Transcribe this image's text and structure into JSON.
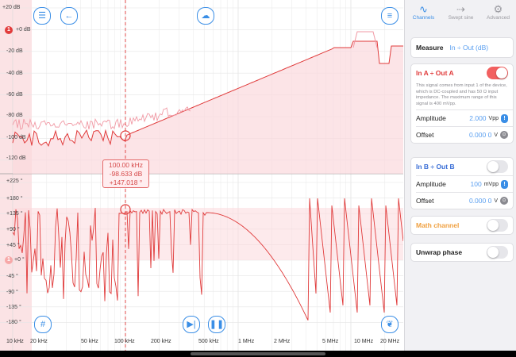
{
  "tabs": [
    {
      "label": "Channels",
      "icon": "channels-icon",
      "active": true
    },
    {
      "label": "Swept sine",
      "icon": "swept-sine-icon",
      "active": false
    },
    {
      "label": "Advanced",
      "icon": "gear-icon",
      "active": false
    }
  ],
  "measure": {
    "label": "Measure",
    "value": "In ÷ Out (dB)"
  },
  "channel_a": {
    "title": "In A ÷ Out A",
    "enabled": true,
    "description": "This signal comes from input 1 of the device, which is DC-coupled and has 50 Ω input impedance. The maximum range of this signal is 400 mVpp.",
    "amplitude_label": "Amplitude",
    "amplitude_value": "2.000",
    "amplitude_unit": "Vpp",
    "offset_label": "Offset",
    "offset_value": "0.000 0",
    "offset_unit": "V"
  },
  "channel_b": {
    "title": "In B ÷ Out B",
    "enabled": false,
    "amplitude_label": "Amplitude",
    "amplitude_value": "100",
    "amplitude_unit": "mVpp",
    "offset_label": "Offset",
    "offset_value": "0.000 0",
    "offset_unit": "V"
  },
  "math_channel": {
    "label": "Math channel",
    "enabled": false
  },
  "unwrap_phase": {
    "label": "Unwrap phase",
    "enabled": false
  },
  "plot": {
    "magnitude_ticks": [
      "+20 dB",
      "+0 dB",
      "-20 dB",
      "-40 dB",
      "-60 dB",
      "-80 dB",
      "-100 dB",
      "-120 dB"
    ],
    "phase_ticks": [
      "+225 °",
      "+180 °",
      "+135 °",
      "+90 °",
      "+45 °",
      "+0 °",
      "-45 °",
      "-90 °",
      "-135 °",
      "-180 °"
    ],
    "x_ticks": [
      "10 kHz",
      "20 kHz",
      "50 kHz",
      "100 kHz",
      "200 kHz",
      "500 kHz",
      "1 MHz",
      "2 MHz",
      "5 MHz",
      "10 MHz",
      "20 MHz"
    ],
    "cursor": {
      "frequency": "100.00 kHz",
      "magnitude": "-98.633 dB",
      "phase": "+147.018 °"
    },
    "marker_label": "1"
  },
  "colors": {
    "trace": "#e03a3a",
    "accent": "#3a8ee6",
    "toggle_on": "#f26060"
  }
}
